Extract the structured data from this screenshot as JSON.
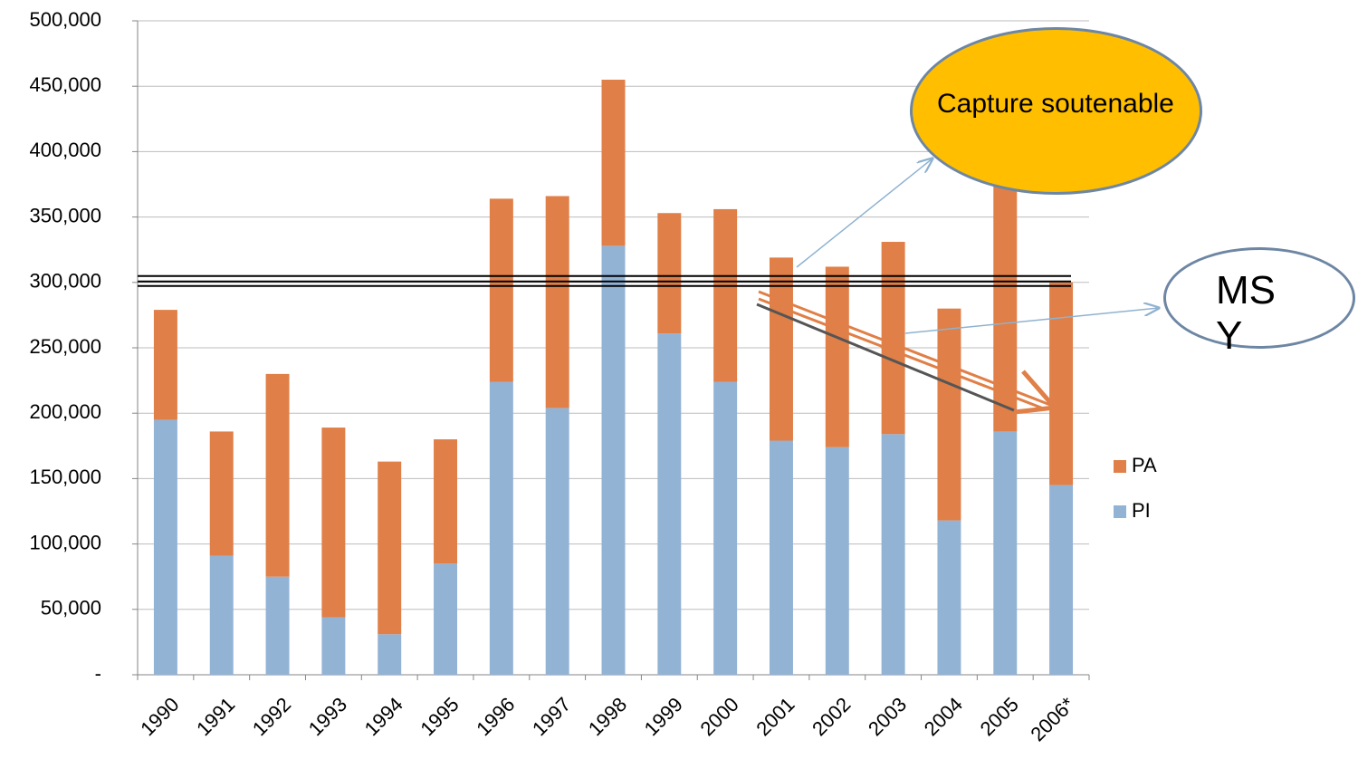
{
  "chart_data": {
    "type": "stacked-bar",
    "categories": [
      "1990",
      "1991",
      "1992",
      "1993",
      "1994",
      "1995",
      "1996",
      "1997",
      "1998",
      "1999",
      "2000",
      "2001",
      "2002",
      "2003",
      "2004",
      "2005",
      "2006*"
    ],
    "series": [
      {
        "name": "PI",
        "color": "#93b3d5",
        "values": [
          195000,
          91000,
          75000,
          44000,
          31000,
          85000,
          224000,
          204000,
          328000,
          261000,
          224000,
          179000,
          174000,
          184000,
          118000,
          186000,
          145000
        ]
      },
      {
        "name": "PA",
        "color": "#e07f47",
        "values": [
          84000,
          95000,
          155000,
          145000,
          132000,
          95000,
          140000,
          162000,
          127000,
          92000,
          132000,
          140000,
          138000,
          147000,
          162000,
          204000,
          155000
        ]
      }
    ],
    "ylim": [
      0,
      500000
    ],
    "yticks": [
      {
        "value": 0,
        "label": "-"
      },
      {
        "value": 50000,
        "label": "50,000"
      },
      {
        "value": 100000,
        "label": "100,000"
      },
      {
        "value": 150000,
        "label": "150,000"
      },
      {
        "value": 200000,
        "label": "200,000"
      },
      {
        "value": 250000,
        "label": "250,000"
      },
      {
        "value": 300000,
        "label": "300,000"
      },
      {
        "value": 350000,
        "label": "350,000"
      },
      {
        "value": 400000,
        "label": "400,000"
      },
      {
        "value": 450000,
        "label": "450,000"
      },
      {
        "value": 500000,
        "label": "500,000"
      }
    ],
    "reference_line": 300000,
    "legend": "right",
    "annotations": [
      "Capture soutenable",
      "MSY"
    ]
  }
}
